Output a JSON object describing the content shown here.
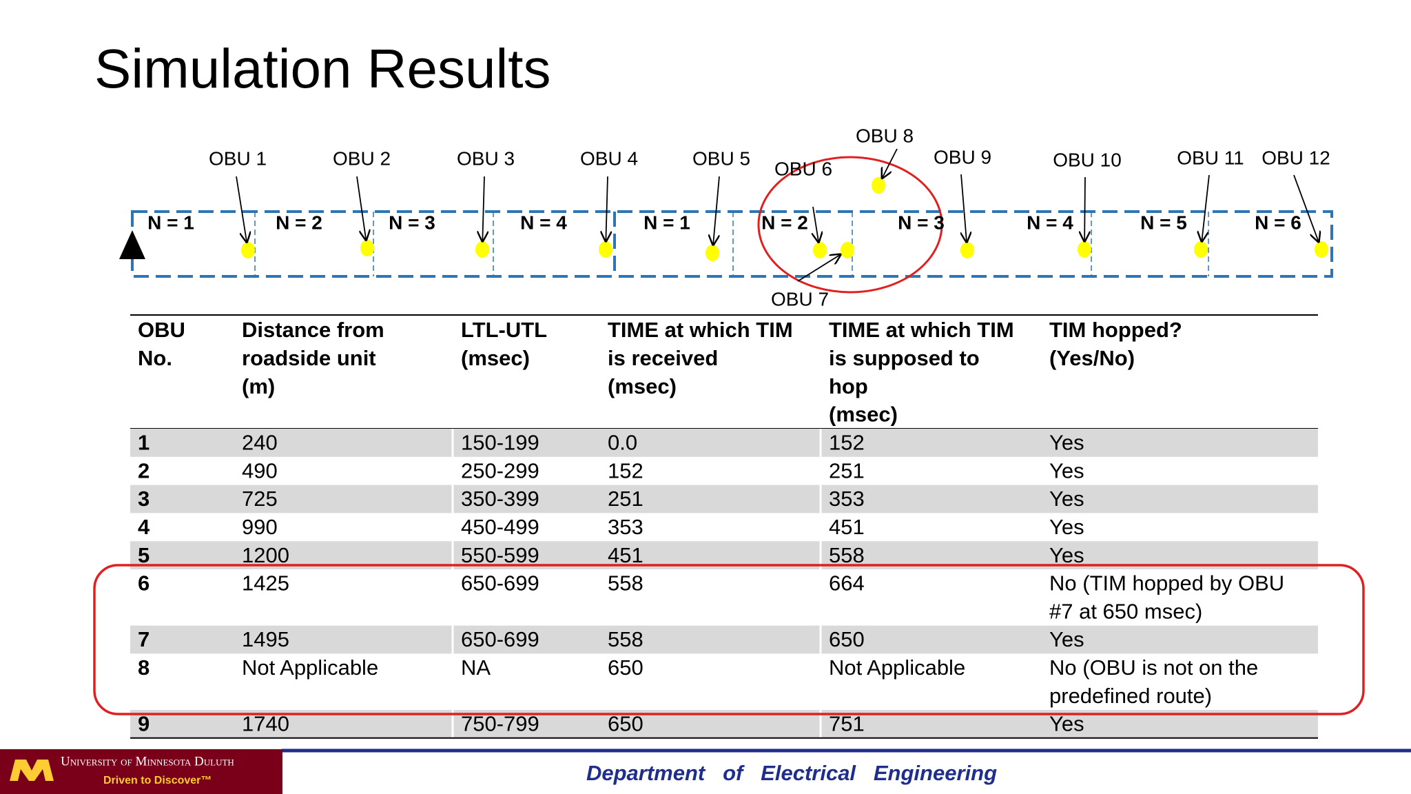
{
  "title": "Simulation Results",
  "diagram": {
    "segments": [
      "N = 1",
      "N = 2",
      "N = 3",
      "N = 4",
      "N = 1",
      "N = 2",
      "N = 3",
      "N = 4",
      "N = 5",
      "N = 6"
    ],
    "obus": [
      "OBU 1",
      "OBU 2",
      "OBU 3",
      "OBU 4",
      "OBU 5",
      "OBU 6",
      "OBU 7",
      "OBU 8",
      "OBU 9",
      "OBU 10",
      "OBU 11",
      "OBU 12"
    ]
  },
  "table": {
    "headers": [
      [
        "OBU",
        "No."
      ],
      [
        "Distance from",
        "roadside unit",
        "(m)"
      ],
      [
        "LTL-UTL",
        "(msec)"
      ],
      [
        "TIME at which TIM",
        "is received",
        "(msec)"
      ],
      [
        "TIME at which TIM",
        "is supposed to",
        "hop",
        "(msec)"
      ],
      [
        "TIM hopped?",
        "(Yes/No)"
      ]
    ],
    "rows": [
      [
        "1",
        "240",
        "150-199",
        "0.0",
        "152",
        "Yes"
      ],
      [
        "2",
        "490",
        "250-299",
        "152",
        "251",
        "Yes"
      ],
      [
        "3",
        "725",
        "350-399",
        "251",
        "353",
        "Yes"
      ],
      [
        "4",
        "990",
        "450-499",
        "353",
        "451",
        "Yes"
      ],
      [
        "5",
        "1200",
        "550-599",
        "451",
        "558",
        "Yes"
      ],
      [
        "6",
        "1425",
        "650-699",
        "558",
        "664",
        [
          "No (TIM hopped by OBU",
          "#7 at 650 msec)"
        ]
      ],
      [
        "7",
        "1495",
        "650-699",
        "558",
        "650",
        "Yes"
      ],
      [
        "8",
        "Not Applicable",
        "NA",
        "650",
        "Not Applicable",
        [
          "No (OBU is not on the",
          "predefined route)"
        ]
      ],
      [
        "9",
        "1740",
        "750-799",
        "650",
        "751",
        "Yes"
      ]
    ]
  },
  "footer": {
    "university": "University of Minnesota Duluth",
    "tagline": "Driven to Discover™",
    "department": "Department   of   Electrical   Engineering"
  }
}
